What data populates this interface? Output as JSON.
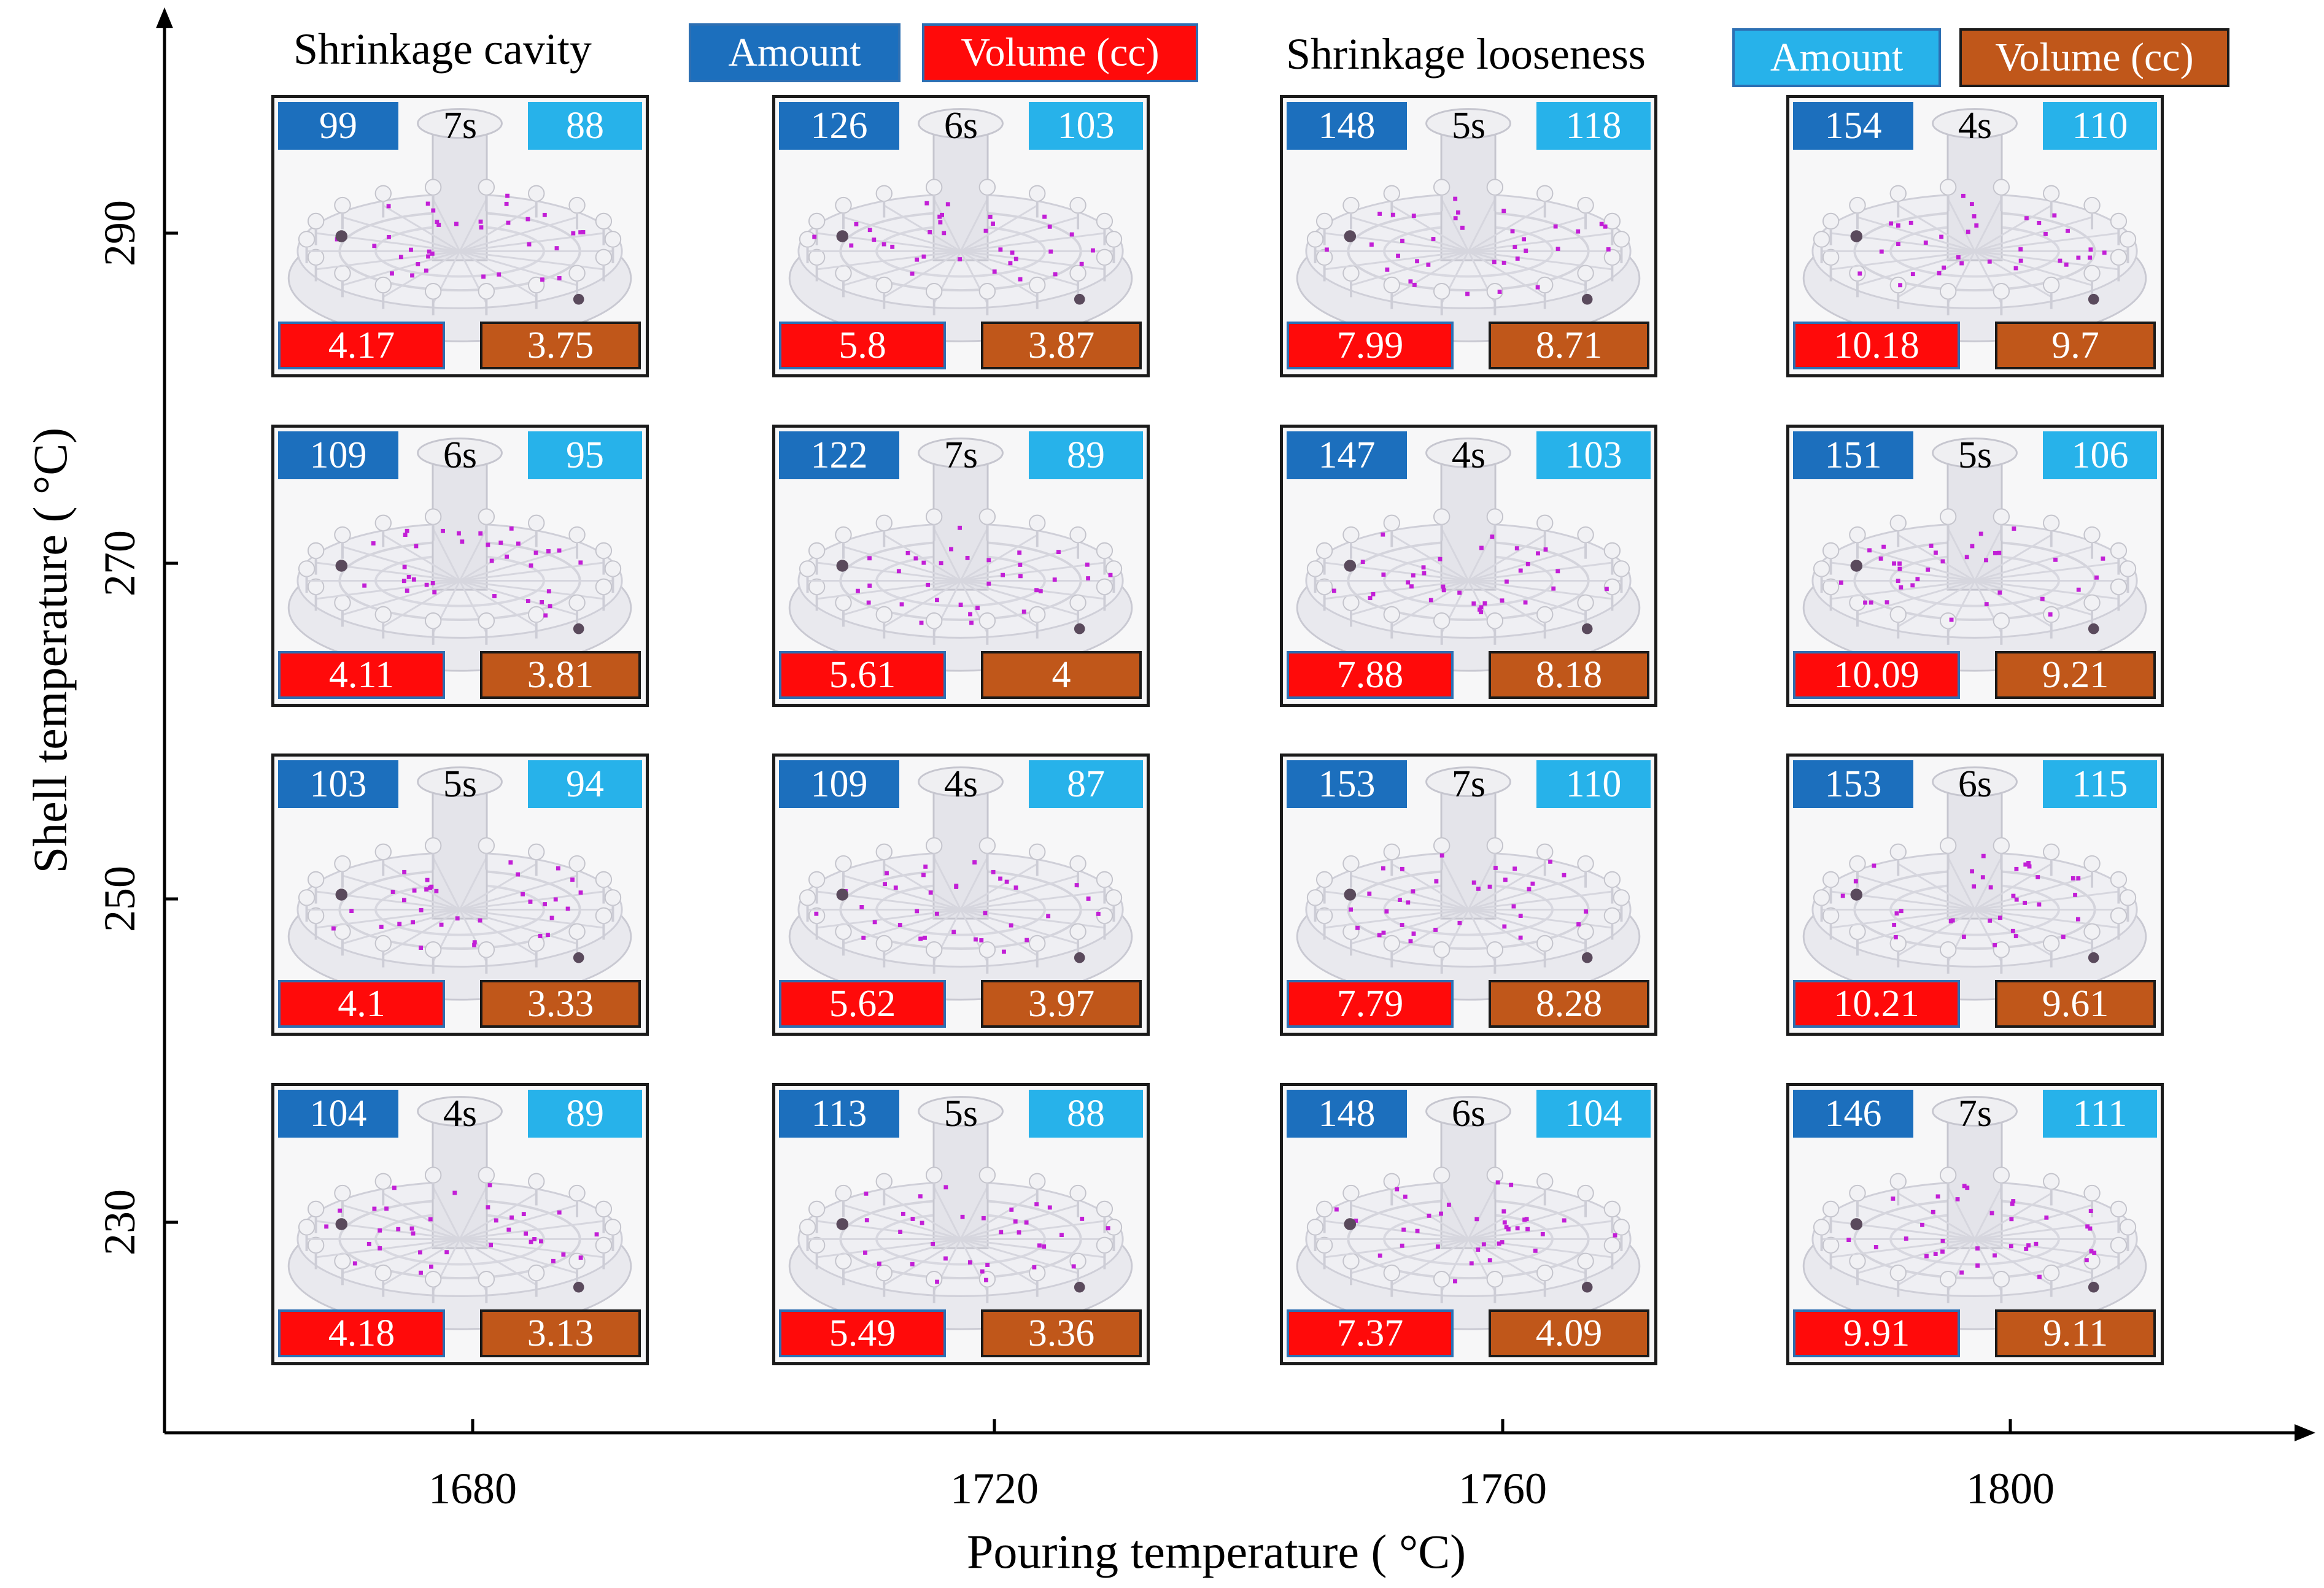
{
  "chart_data": {
    "type": "heatmap",
    "xlabel": "Pouring temperature ( °C)",
    "ylabel": "Shell temperature ( °C)",
    "x": [
      1680,
      1720,
      1760,
      1800
    ],
    "y": [
      290,
      270,
      250,
      230
    ],
    "legend": {
      "cavity_title": "Shrinkage cavity",
      "looseness_title": "Shrinkage looseness",
      "amount_label": "Amount",
      "volume_label": "Volume (cc)"
    },
    "rows": [
      {
        "shell": 290,
        "cells": [
          {
            "pour": 1680,
            "time": "7s",
            "cavity_amount": "99",
            "looseness_amount": "88",
            "cavity_volume": "4.17",
            "looseness_volume": "3.75"
          },
          {
            "pour": 1720,
            "time": "6s",
            "cavity_amount": "126",
            "looseness_amount": "103",
            "cavity_volume": "5.8",
            "looseness_volume": "3.87"
          },
          {
            "pour": 1760,
            "time": "5s",
            "cavity_amount": "148",
            "looseness_amount": "118",
            "cavity_volume": "7.99",
            "looseness_volume": "8.71"
          },
          {
            "pour": 1800,
            "time": "4s",
            "cavity_amount": "154",
            "looseness_amount": "110",
            "cavity_volume": "10.18",
            "looseness_volume": "9.7"
          }
        ]
      },
      {
        "shell": 270,
        "cells": [
          {
            "pour": 1680,
            "time": "6s",
            "cavity_amount": "109",
            "looseness_amount": "95",
            "cavity_volume": "4.11",
            "looseness_volume": "3.81"
          },
          {
            "pour": 1720,
            "time": "7s",
            "cavity_amount": "122",
            "looseness_amount": "89",
            "cavity_volume": "5.61",
            "looseness_volume": "4"
          },
          {
            "pour": 1760,
            "time": "4s",
            "cavity_amount": "147",
            "looseness_amount": "103",
            "cavity_volume": "7.88",
            "looseness_volume": "8.18"
          },
          {
            "pour": 1800,
            "time": "5s",
            "cavity_amount": "151",
            "looseness_amount": "106",
            "cavity_volume": "10.09",
            "looseness_volume": "9.21"
          }
        ]
      },
      {
        "shell": 250,
        "cells": [
          {
            "pour": 1680,
            "time": "5s",
            "cavity_amount": "103",
            "looseness_amount": "94",
            "cavity_volume": "4.1",
            "looseness_volume": "3.33"
          },
          {
            "pour": 1720,
            "time": "4s",
            "cavity_amount": "109",
            "looseness_amount": "87",
            "cavity_volume": "5.62",
            "looseness_volume": "3.97"
          },
          {
            "pour": 1760,
            "time": "7s",
            "cavity_amount": "153",
            "looseness_amount": "110",
            "cavity_volume": "7.79",
            "looseness_volume": "8.28"
          },
          {
            "pour": 1800,
            "time": "6s",
            "cavity_amount": "153",
            "looseness_amount": "115",
            "cavity_volume": "10.21",
            "looseness_volume": "9.61"
          }
        ]
      },
      {
        "shell": 230,
        "cells": [
          {
            "pour": 1680,
            "time": "4s",
            "cavity_amount": "104",
            "looseness_amount": "89",
            "cavity_volume": "4.18",
            "looseness_volume": "3.13"
          },
          {
            "pour": 1720,
            "time": "5s",
            "cavity_amount": "113",
            "looseness_amount": "88",
            "cavity_volume": "5.49",
            "looseness_volume": "3.36"
          },
          {
            "pour": 1760,
            "time": "6s",
            "cavity_amount": "148",
            "looseness_amount": "104",
            "cavity_volume": "7.37",
            "looseness_volume": "4.09"
          },
          {
            "pour": 1800,
            "time": "7s",
            "cavity_amount": "146",
            "looseness_amount": "111",
            "cavity_volume": "9.91",
            "looseness_volume": "9.11"
          }
        ]
      }
    ]
  },
  "colors": {
    "cavity_amount": "#1c6fbd",
    "looseness_amount": "#27b2ea",
    "cavity_volume": "#ff0a0a",
    "looseness_volume": "#c0571a",
    "defect_marker": "#c21fd6"
  }
}
